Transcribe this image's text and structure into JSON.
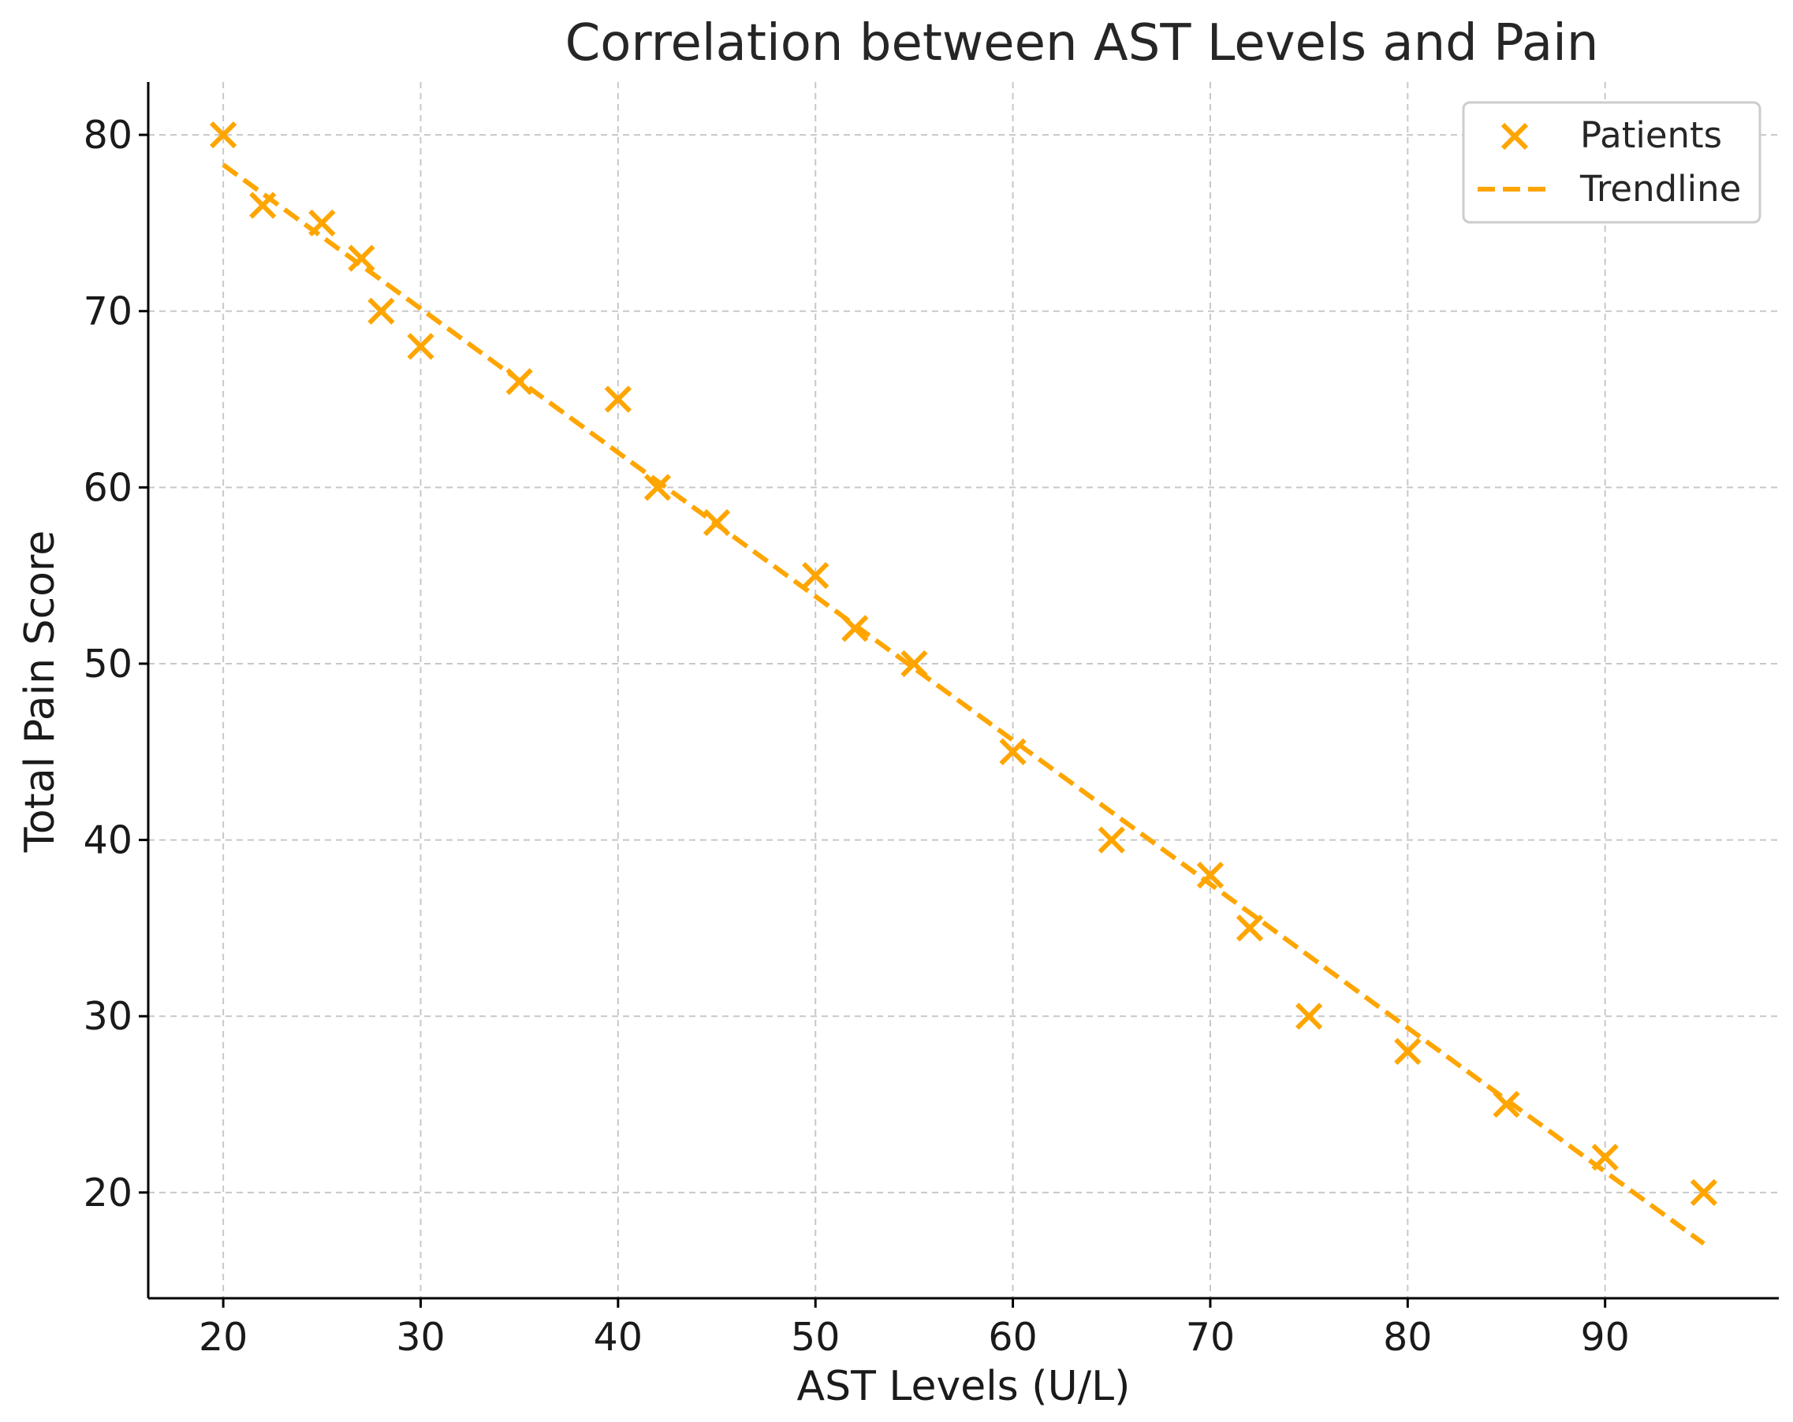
{
  "chart_data": {
    "type": "scatter",
    "title": "Correlation between AST Levels and Pain",
    "xlabel": "AST Levels (U/L)",
    "ylabel": "Total Pain Score",
    "xlim": [
      16.2,
      98.8
    ],
    "ylim": [
      14,
      83
    ],
    "xticks": [
      20,
      30,
      40,
      50,
      60,
      70,
      80,
      90
    ],
    "yticks": [
      20,
      30,
      40,
      50,
      60,
      70,
      80
    ],
    "grid": true,
    "legend_position": "top-right",
    "accent_color": "#FFA500",
    "series": [
      {
        "name": "Patients",
        "kind": "scatter",
        "marker": "x",
        "color": "#FFA500",
        "x": [
          20,
          22,
          25,
          27,
          28,
          30,
          35,
          40,
          42,
          45,
          50,
          52,
          55,
          60,
          65,
          70,
          72,
          75,
          80,
          85,
          90,
          95
        ],
        "y": [
          80,
          76,
          75,
          73,
          70,
          68,
          66,
          65,
          60,
          58,
          55,
          52,
          50,
          45,
          40,
          38,
          35,
          30,
          28,
          25,
          22,
          20
        ]
      },
      {
        "name": "Trendline",
        "kind": "line",
        "dash": true,
        "color": "#FFA500",
        "x": [
          20,
          95
        ],
        "y": [
          78.3,
          17.1
        ]
      }
    ]
  }
}
